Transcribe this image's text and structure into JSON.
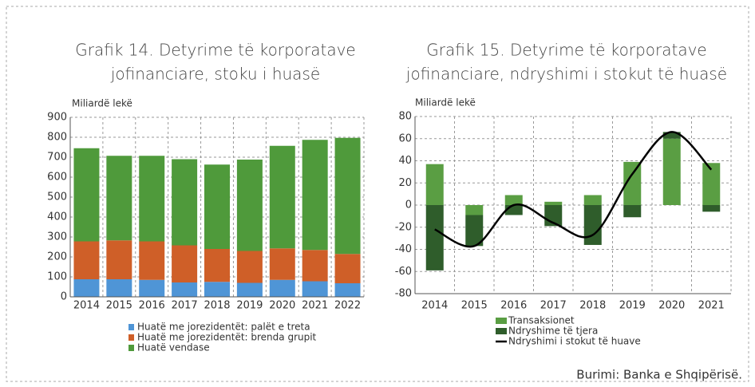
{
  "chart_data": [
    {
      "type": "bar",
      "title": [
        "Grafik 14. Detyrime të korporatave",
        "jofinanciare, stoku i huasë"
      ],
      "y_label": "Miliardë lekë",
      "categories": [
        "2014",
        "2015",
        "2016",
        "2017",
        "2018",
        "2019",
        "2020",
        "2021",
        "2022"
      ],
      "series": [
        {
          "name": "Huatë me jorezidentët: palët e treta",
          "color": "#4f95d6",
          "values": [
            88,
            88,
            85,
            72,
            75,
            70,
            85,
            78,
            68
          ]
        },
        {
          "name": "Huatë me jorezidentët: brenda grupit",
          "color": "#cf5f28",
          "values": [
            190,
            195,
            193,
            186,
            165,
            160,
            158,
            157,
            147
          ]
        },
        {
          "name": "Huatë vendase",
          "color": "#4f9a3b",
          "values": [
            467,
            424,
            429,
            432,
            423,
            458,
            514,
            552,
            582
          ]
        }
      ],
      "ylim": [
        0,
        900
      ],
      "yticks": [
        0,
        100,
        200,
        300,
        400,
        500,
        600,
        700,
        800,
        900
      ],
      "grid": true
    },
    {
      "type": "bar",
      "title": [
        "Grafik 15. Detyrime të korporatave",
        "jofinanciare, ndryshimi i stokut të huasë"
      ],
      "y_label": "Miliardë lekë",
      "categories": [
        "2014",
        "2015",
        "2016",
        "2017",
        "2018",
        "2019",
        "2020",
        "2021"
      ],
      "series": [
        {
          "name": "Transaksionet",
          "color": "#5a9e43",
          "values": [
            37,
            -9,
            9,
            3,
            9,
            39,
            60,
            38
          ]
        },
        {
          "name": "Ndryshime të tjera",
          "color": "#2f5d2b",
          "values": [
            -59,
            -28,
            -9,
            -19,
            -36,
            -11,
            6,
            -6
          ]
        },
        {
          "name": "Ndryshimi i stokut të huave",
          "color": "#000000",
          "type": "line",
          "values": [
            -22,
            -37,
            0,
            -16,
            -27,
            28,
            66,
            32
          ]
        }
      ],
      "ylim": [
        -80,
        80
      ],
      "yticks": [
        -80,
        -60,
        -40,
        -20,
        0,
        20,
        40,
        60,
        80
      ],
      "grid": true
    }
  ],
  "source": "Burimi: Banka e Shqipërisë."
}
